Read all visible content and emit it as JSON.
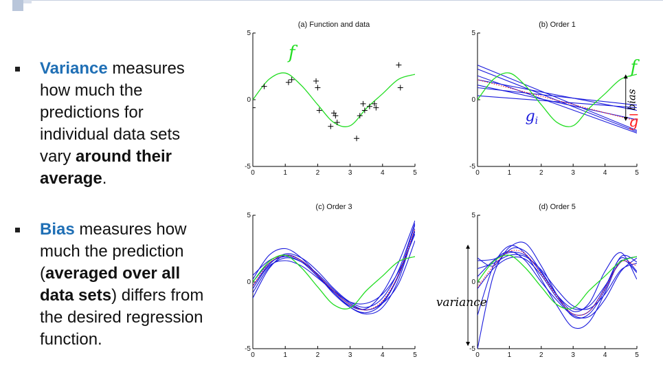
{
  "slide": {
    "bullets": [
      {
        "keyword": "Variance",
        "part1": " measures how much the predictions for individual data sets vary ",
        "emphasis": "around their average",
        "part2": "."
      },
      {
        "keyword": "Bias",
        "part1": " measures how much the prediction (",
        "emphasis": "averaged over all data sets",
        "part2": ") differs from the desired regression function."
      }
    ]
  },
  "colors": {
    "true_function": "#22dd22",
    "fits": "#1a1adc",
    "average_fit": "#ff2020",
    "data_points": "#000000",
    "keyword": "#1f6fb5"
  },
  "chart_data": [
    {
      "type": "scatter",
      "title": "(a) Function and data",
      "xlim": [
        0,
        5
      ],
      "ylim": [
        -5,
        5
      ],
      "xticks": [
        0,
        1,
        2,
        3,
        4,
        5
      ],
      "yticks": [
        -5,
        0,
        5
      ],
      "annotations": [
        {
          "text": "f",
          "x": 1.2,
          "y": 3.1,
          "color": "#22dd22"
        }
      ],
      "true_function": {
        "x": [
          0,
          0.5,
          1,
          1.5,
          2,
          2.5,
          3,
          3.5,
          4,
          4.5,
          5
        ],
        "y": [
          0,
          1.53,
          2,
          1.06,
          -0.37,
          -1.71,
          -1.95,
          -0.65,
          0.45,
          1.54,
          1.9
        ]
      },
      "points": {
        "x": [
          0,
          0.35,
          1.1,
          1.2,
          1.95,
          2.0,
          2.05,
          2.4,
          2.5,
          2.55,
          2.6,
          3.2,
          3.3,
          3.4,
          3.45,
          3.6,
          3.75,
          3.8,
          4.5,
          4.55
        ],
        "y": [
          -0.6,
          1.0,
          1.3,
          1.5,
          1.4,
          0.9,
          -0.8,
          -2.0,
          -1.0,
          -1.2,
          -1.7,
          -2.9,
          -1.2,
          -0.3,
          -0.8,
          -0.5,
          -0.3,
          -0.6,
          2.6,
          0.9
        ]
      }
    },
    {
      "type": "line",
      "title": "(b) Order 1",
      "xlim": [
        0,
        5
      ],
      "ylim": [
        -5,
        5
      ],
      "xticks": [
        0,
        1,
        2,
        3,
        4,
        5
      ],
      "yticks": [
        -5,
        0,
        5
      ],
      "annotations": [
        {
          "text": "f",
          "x": 4.9,
          "y": 2.0,
          "color": "#22dd22"
        },
        {
          "text": "g_i",
          "x": 1.7,
          "y": -1.6,
          "color": "#1a1adc"
        },
        {
          "text": "g-bar",
          "x": 4.9,
          "y": -2.0,
          "color": "#ff2020"
        },
        {
          "text": "bias",
          "x": 4.95,
          "y": 0,
          "color": "#000000"
        }
      ],
      "bias_arrow": {
        "x": 4.65,
        "y1": 1.9,
        "y2": -1.6
      },
      "true_function": {
        "x": [
          0,
          0.5,
          1,
          1.5,
          2,
          2.5,
          3,
          3.5,
          4,
          4.5,
          5
        ],
        "y": [
          0,
          1.53,
          2,
          1.06,
          -0.37,
          -1.71,
          -1.95,
          -0.65,
          0.45,
          1.54,
          1.9
        ]
      },
      "fits": [
        {
          "x": [
            0,
            5
          ],
          "y": [
            2.6,
            -2.3
          ]
        },
        {
          "x": [
            0,
            5
          ],
          "y": [
            2.3,
            -2.4
          ]
        },
        {
          "x": [
            0,
            5
          ],
          "y": [
            1.5,
            -0.8
          ]
        },
        {
          "x": [
            0,
            5
          ],
          "y": [
            1.1,
            -1.5
          ]
        },
        {
          "x": [
            0,
            5
          ],
          "y": [
            0.9,
            -0.4
          ]
        },
        {
          "x": [
            0,
            5
          ],
          "y": [
            0.3,
            -0.6
          ]
        },
        {
          "x": [
            0,
            5
          ],
          "y": [
            1.8,
            -2.5
          ]
        }
      ],
      "average_fit": {
        "x": [
          0,
          5
        ],
        "y": [
          1.5,
          -1.6
        ]
      }
    },
    {
      "type": "line",
      "title": "(c) Order 3",
      "xlim": [
        0,
        5
      ],
      "ylim": [
        -5,
        5
      ],
      "xticks": [
        0,
        1,
        2,
        3,
        4,
        5
      ],
      "yticks": [
        -5,
        0,
        5
      ],
      "true_function": {
        "x": [
          0,
          0.5,
          1,
          1.5,
          2,
          2.5,
          3,
          3.5,
          4,
          4.5,
          5
        ],
        "y": [
          0,
          1.53,
          2,
          1.06,
          -0.37,
          -1.71,
          -1.95,
          -0.65,
          0.45,
          1.54,
          1.9
        ]
      },
      "fits": [
        {
          "x": [
            0,
            0.5,
            1,
            1.5,
            2,
            2.5,
            3,
            3.5,
            4,
            4.5,
            5
          ],
          "y": [
            -1.2,
            1.0,
            2.0,
            1.6,
            0.5,
            -0.8,
            -1.8,
            -2.0,
            -0.8,
            1.5,
            4.6
          ]
        },
        {
          "x": [
            0,
            0.5,
            1,
            1.5,
            2,
            2.5,
            3,
            3.5,
            4,
            4.5,
            5
          ],
          "y": [
            0.2,
            2.0,
            2.5,
            1.8,
            0.5,
            -0.9,
            -1.9,
            -2.3,
            -1.6,
            0.5,
            3.8
          ]
        },
        {
          "x": [
            0,
            0.5,
            1,
            1.5,
            2,
            2.5,
            3,
            3.5,
            4,
            4.5,
            5
          ],
          "y": [
            -0.5,
            1.2,
            1.6,
            1.2,
            0.3,
            -0.7,
            -1.5,
            -1.6,
            -0.9,
            0.8,
            3.6
          ]
        },
        {
          "x": [
            0,
            0.5,
            1,
            1.5,
            2,
            2.5,
            3,
            3.5,
            4,
            4.5,
            5
          ],
          "y": [
            0.5,
            1.6,
            2.0,
            1.6,
            0.5,
            -0.7,
            -1.7,
            -2.1,
            -1.6,
            -0.1,
            3.1
          ]
        },
        {
          "x": [
            0,
            0.5,
            1,
            1.5,
            2,
            2.5,
            3,
            3.5,
            4,
            4.5,
            5
          ],
          "y": [
            -0.8,
            1.1,
            1.8,
            1.5,
            0.6,
            -0.6,
            -1.6,
            -2.1,
            -1.5,
            0.6,
            4.3
          ]
        },
        {
          "x": [
            0,
            0.5,
            1,
            1.5,
            2,
            2.5,
            3,
            3.5,
            4,
            4.5,
            5
          ],
          "y": [
            0.0,
            1.4,
            1.9,
            1.5,
            0.4,
            -0.8,
            -1.9,
            -2.4,
            -1.9,
            0.2,
            4.0
          ]
        },
        {
          "x": [
            0,
            0.5,
            1,
            1.5,
            2,
            2.5,
            3,
            3.5,
            4,
            4.5,
            5
          ],
          "y": [
            -0.3,
            1.3,
            2.1,
            1.8,
            0.8,
            -0.5,
            -1.5,
            -1.9,
            -1.2,
            0.9,
            4.4
          ]
        }
      ],
      "average_fit": {
        "x": [
          0,
          0.5,
          1,
          1.5,
          2,
          2.5,
          3,
          3.5,
          4,
          4.5,
          5
        ],
        "y": [
          -0.3,
          1.4,
          2.0,
          1.6,
          0.5,
          -0.7,
          -1.7,
          -2.1,
          -1.4,
          0.6,
          4.0
        ]
      }
    },
    {
      "type": "line",
      "title": "(d) Order 5",
      "xlim": [
        0,
        5
      ],
      "ylim": [
        -5,
        5
      ],
      "xticks": [
        0,
        1,
        2,
        3,
        4,
        5
      ],
      "yticks": [
        -5,
        0,
        5
      ],
      "annotations": [
        {
          "text": "variance",
          "x": -0.5,
          "y": -1.8,
          "color": "#000000"
        }
      ],
      "variance_arrow": {
        "x": -0.3,
        "y1": 2.8,
        "y2": -4.8
      },
      "true_function": {
        "x": [
          0,
          0.5,
          1,
          1.5,
          2,
          2.5,
          3,
          3.5,
          4,
          4.5,
          5
        ],
        "y": [
          0,
          1.53,
          2,
          1.06,
          -0.37,
          -1.71,
          -1.95,
          -0.65,
          0.45,
          1.54,
          1.9
        ]
      },
      "fits": [
        {
          "x": [
            0,
            0.5,
            1,
            1.5,
            2,
            2.5,
            3,
            3.5,
            4,
            4.5,
            5
          ],
          "y": [
            -5.0,
            0.5,
            2.4,
            2.3,
            0.8,
            -1.0,
            -2.2,
            -1.6,
            0.8,
            2.2,
            0.2
          ]
        },
        {
          "x": [
            0,
            0.5,
            1,
            1.5,
            2,
            2.5,
            3,
            3.5,
            4,
            4.5,
            5
          ],
          "y": [
            1.8,
            1.2,
            2.6,
            2.9,
            1.2,
            -1.0,
            -2.6,
            -2.4,
            -0.6,
            1.9,
            1.5
          ]
        },
        {
          "x": [
            0,
            0.5,
            1,
            1.5,
            2,
            2.5,
            3,
            3.5,
            4,
            4.5,
            5
          ],
          "y": [
            1.6,
            1.7,
            2.2,
            2.0,
            0.7,
            -1.0,
            -2.0,
            -1.8,
            -0.3,
            1.5,
            1.9
          ]
        },
        {
          "x": [
            0,
            0.5,
            1,
            1.5,
            2,
            2.5,
            3,
            3.5,
            4,
            4.5,
            5
          ],
          "y": [
            -0.5,
            1.0,
            1.8,
            1.7,
            0.5,
            -1.2,
            -2.4,
            -2.2,
            -0.4,
            1.8,
            0.8
          ]
        },
        {
          "x": [
            0,
            0.5,
            1,
            1.5,
            2,
            2.5,
            3,
            3.5,
            4,
            4.5,
            5
          ],
          "y": [
            -2.5,
            1.2,
            2.7,
            2.1,
            0.2,
            -1.8,
            -3.4,
            -3.0,
            -0.8,
            1.6,
            0.7
          ]
        },
        {
          "x": [
            0,
            0.5,
            1,
            1.5,
            2,
            2.5,
            3,
            3.5,
            4,
            4.5,
            5
          ],
          "y": [
            1.0,
            1.4,
            2.0,
            1.9,
            0.9,
            -0.6,
            -1.8,
            -2.0,
            -0.9,
            0.9,
            1.4
          ]
        },
        {
          "x": [
            0,
            0.5,
            1,
            1.5,
            2,
            2.5,
            3,
            3.5,
            4,
            4.5,
            5
          ],
          "y": [
            0.4,
            1.6,
            2.3,
            1.6,
            0.0,
            -1.4,
            -2.5,
            -2.6,
            -1.3,
            0.8,
            1.8
          ]
        }
      ],
      "average_fit": {
        "x": [
          0,
          0.5,
          1,
          1.5,
          2,
          2.5,
          3,
          3.5,
          4,
          4.5,
          5
        ],
        "y": [
          -0.4,
          1.2,
          2.3,
          2.1,
          0.6,
          -1.1,
          -2.4,
          -2.2,
          -0.5,
          1.5,
          1.2
        ]
      }
    }
  ]
}
